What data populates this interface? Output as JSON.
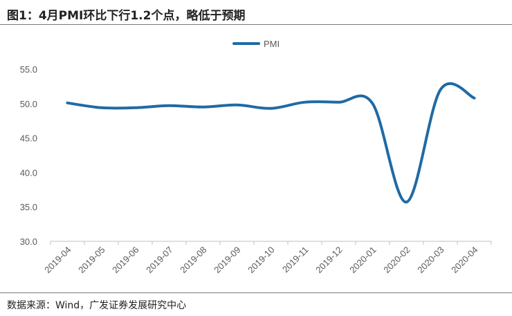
{
  "header": {
    "title": "图1：4月PMI环比下行1.2个点，略低于预期"
  },
  "footer": {
    "source": "数据来源：Wind，广发证券发展研究中心"
  },
  "chart_data": {
    "type": "line",
    "categories": [
      "2019-04",
      "2019-05",
      "2019-06",
      "2019-07",
      "2019-08",
      "2019-09",
      "2019-10",
      "2019-11",
      "2019-12",
      "2020-01",
      "2020-02",
      "2020-03",
      "2020-04"
    ],
    "series": [
      {
        "name": "PMI",
        "values": [
          50.1,
          49.4,
          49.4,
          49.7,
          49.5,
          49.8,
          49.3,
          50.2,
          50.2,
          50.0,
          35.7,
          52.0,
          50.8
        ]
      }
    ],
    "ylim": [
      30,
      55
    ],
    "yticks": [
      30,
      35,
      40,
      45,
      50,
      55
    ],
    "grid": false,
    "legend": "top-center",
    "color": "#1f6aa5"
  }
}
